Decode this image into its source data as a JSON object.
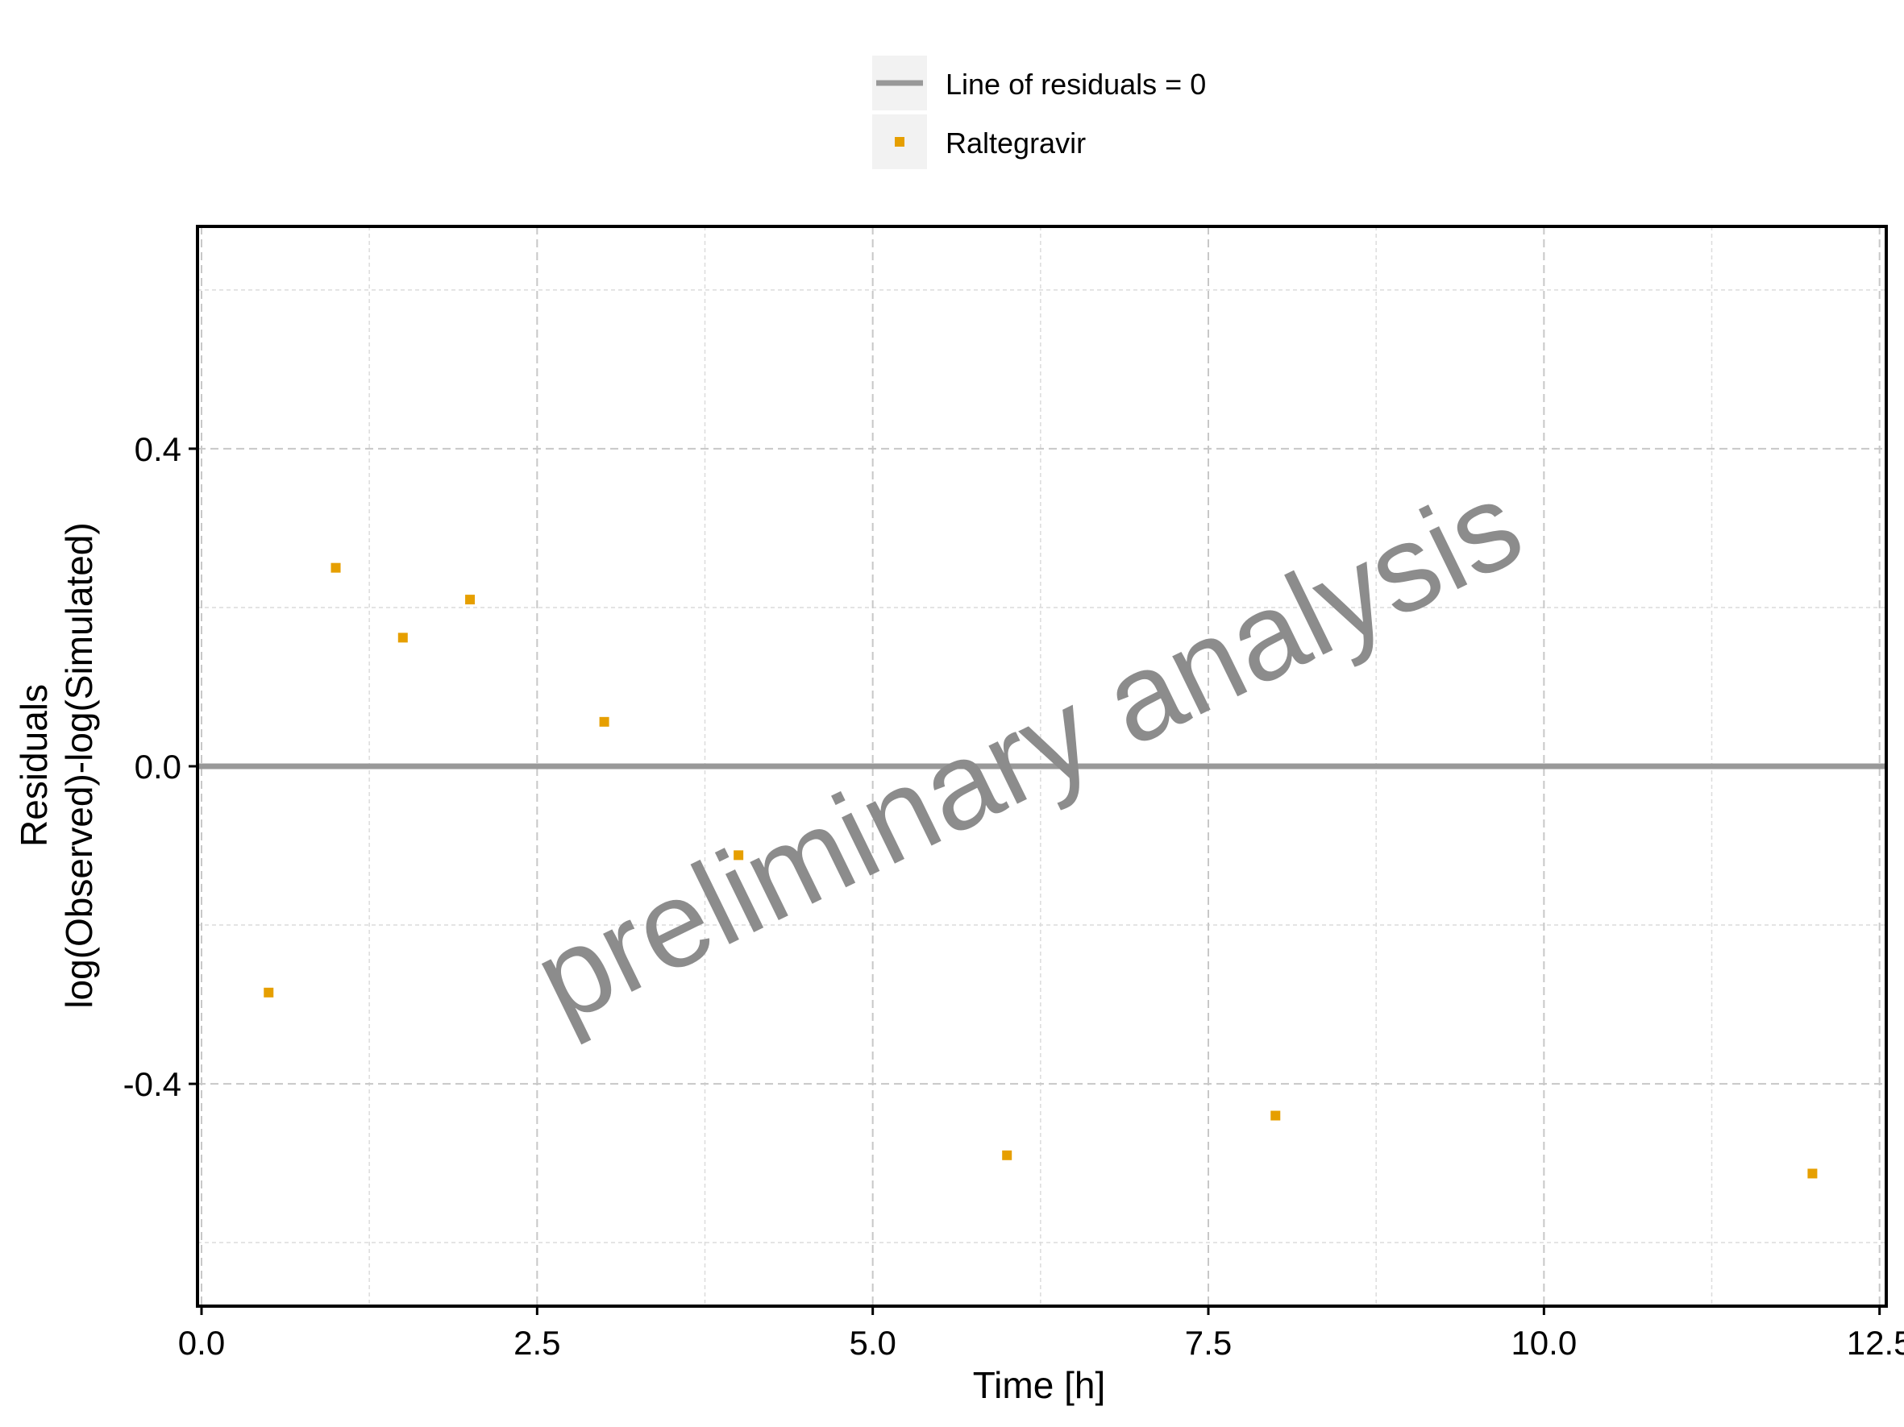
{
  "chart_data": {
    "type": "scatter",
    "title": "",
    "xlabel": "Time [h]",
    "ylabel_line1": "Residuals",
    "ylabel_line2": "log(Observed)-log(Simulated)",
    "xlim": [
      -0.03,
      12.55
    ],
    "ylim": [
      -0.68,
      0.68
    ],
    "x_ticks": [
      0.0,
      2.5,
      5.0,
      7.5,
      10.0,
      12.5
    ],
    "x_tick_labels": [
      "0.0",
      "2.5",
      "5.0",
      "7.5",
      "10.0",
      "12.5"
    ],
    "x_minor_gridlines": [
      1.25,
      3.75,
      6.25,
      8.75,
      11.25
    ],
    "y_ticks": [
      0.4,
      0.0,
      -0.4
    ],
    "y_tick_labels": [
      "0.4",
      "0.0",
      "-0.4"
    ],
    "y_minor_gridlines": [
      0.6,
      0.2,
      -0.2,
      -0.6
    ],
    "grid": true,
    "legend_position": "top-center",
    "reference_line": {
      "name": "Line of residuals = 0",
      "y": 0,
      "color": "#999999"
    },
    "series": [
      {
        "name": "Raltegravir",
        "color": "#E69F00",
        "x": [
          0.5,
          1.0,
          1.5,
          2.0,
          3.0,
          4.0,
          6.0,
          8.0,
          12.0
        ],
        "y": [
          -0.285,
          0.25,
          0.162,
          0.21,
          0.056,
          -0.112,
          -0.49,
          -0.44,
          -0.513
        ]
      }
    ],
    "watermark": "preliminary analysis"
  }
}
